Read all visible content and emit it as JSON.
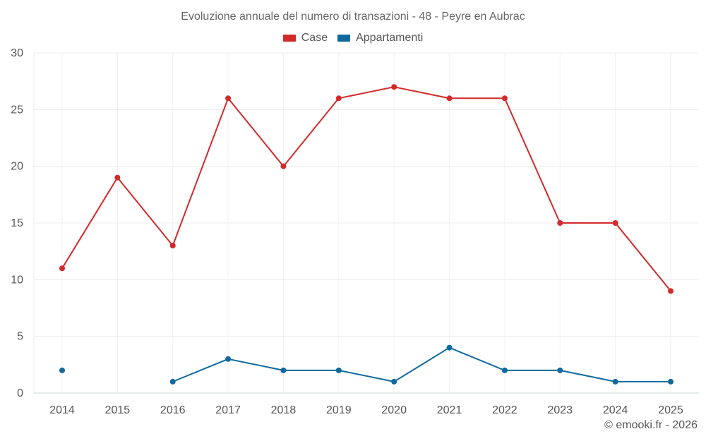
{
  "chart_data": {
    "type": "line",
    "title": "Evoluzione annuale del numero di transazioni - 48 - Peyre en Aubrac",
    "x": [
      "2014",
      "2015",
      "2016",
      "2017",
      "2018",
      "2019",
      "2020",
      "2021",
      "2022",
      "2023",
      "2024",
      "2025"
    ],
    "ylim": [
      0,
      30
    ],
    "yticks": [
      0,
      5,
      10,
      15,
      20,
      25,
      30
    ],
    "grid": true,
    "legend_position": "top-center",
    "series": [
      {
        "name": "Case",
        "color": "#d32a2a",
        "values": [
          11,
          19,
          13,
          26,
          20,
          26,
          27,
          26,
          26,
          15,
          15,
          9
        ]
      },
      {
        "name": "Appartamenti",
        "color": "#0e6a9e",
        "values": [
          2,
          null,
          1,
          3,
          2,
          2,
          1,
          4,
          2,
          2,
          1,
          1
        ]
      }
    ]
  },
  "credit": "© emooki.fr - 2026"
}
